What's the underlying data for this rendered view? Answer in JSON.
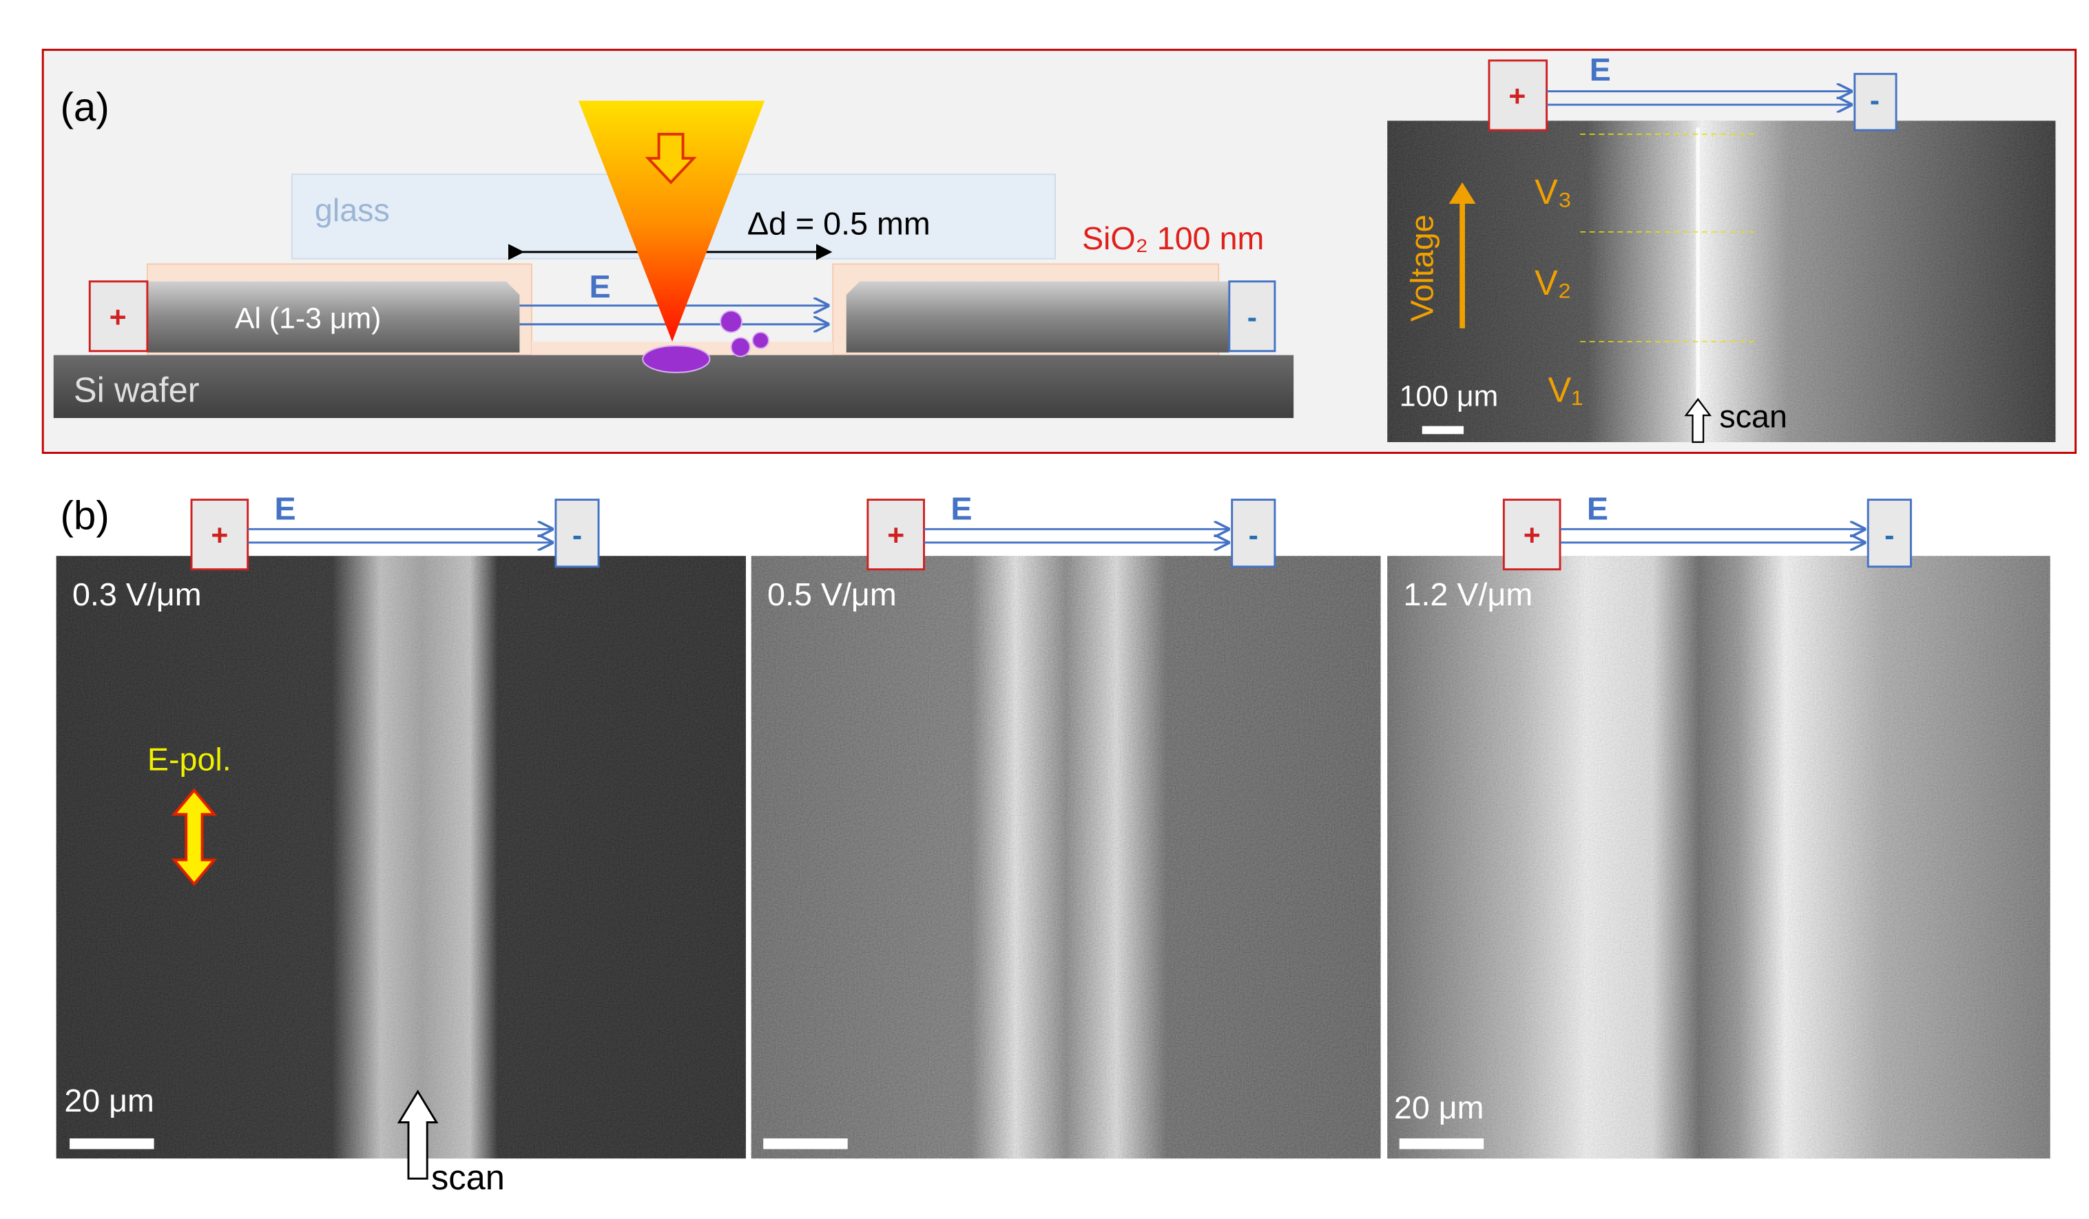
{
  "panel_a": {
    "label": "(a)",
    "diagram": {
      "glass": "glass",
      "gap": "Δd = 0.5 mm",
      "oxide": "SiO₂ 100 nm",
      "electrode": "Al (1-3 μm)",
      "substrate": "Si wafer",
      "field": "E",
      "plus": "+",
      "minus": "-"
    },
    "inset": {
      "field": "E",
      "plus": "+",
      "minus": "-",
      "axis": "Voltage",
      "levels": [
        "V₃",
        "V₂",
        "V₁"
      ],
      "scale_bar": "100 μm",
      "scan": "scan"
    }
  },
  "panel_b": {
    "label": "(b)",
    "panels": [
      {
        "field_strength": "0.3 V/μm",
        "plus": "+",
        "field": "E",
        "minus": "-",
        "scale_bar": "20 μm"
      },
      {
        "field_strength": "0.5 V/μm",
        "plus": "+",
        "field": "E",
        "minus": "-"
      },
      {
        "field_strength": "1.2 V/μm",
        "plus": "+",
        "field": "E",
        "minus": "-",
        "scale_bar": "20 μm"
      }
    ],
    "polarization": "E-pol.",
    "scan": "scan"
  }
}
